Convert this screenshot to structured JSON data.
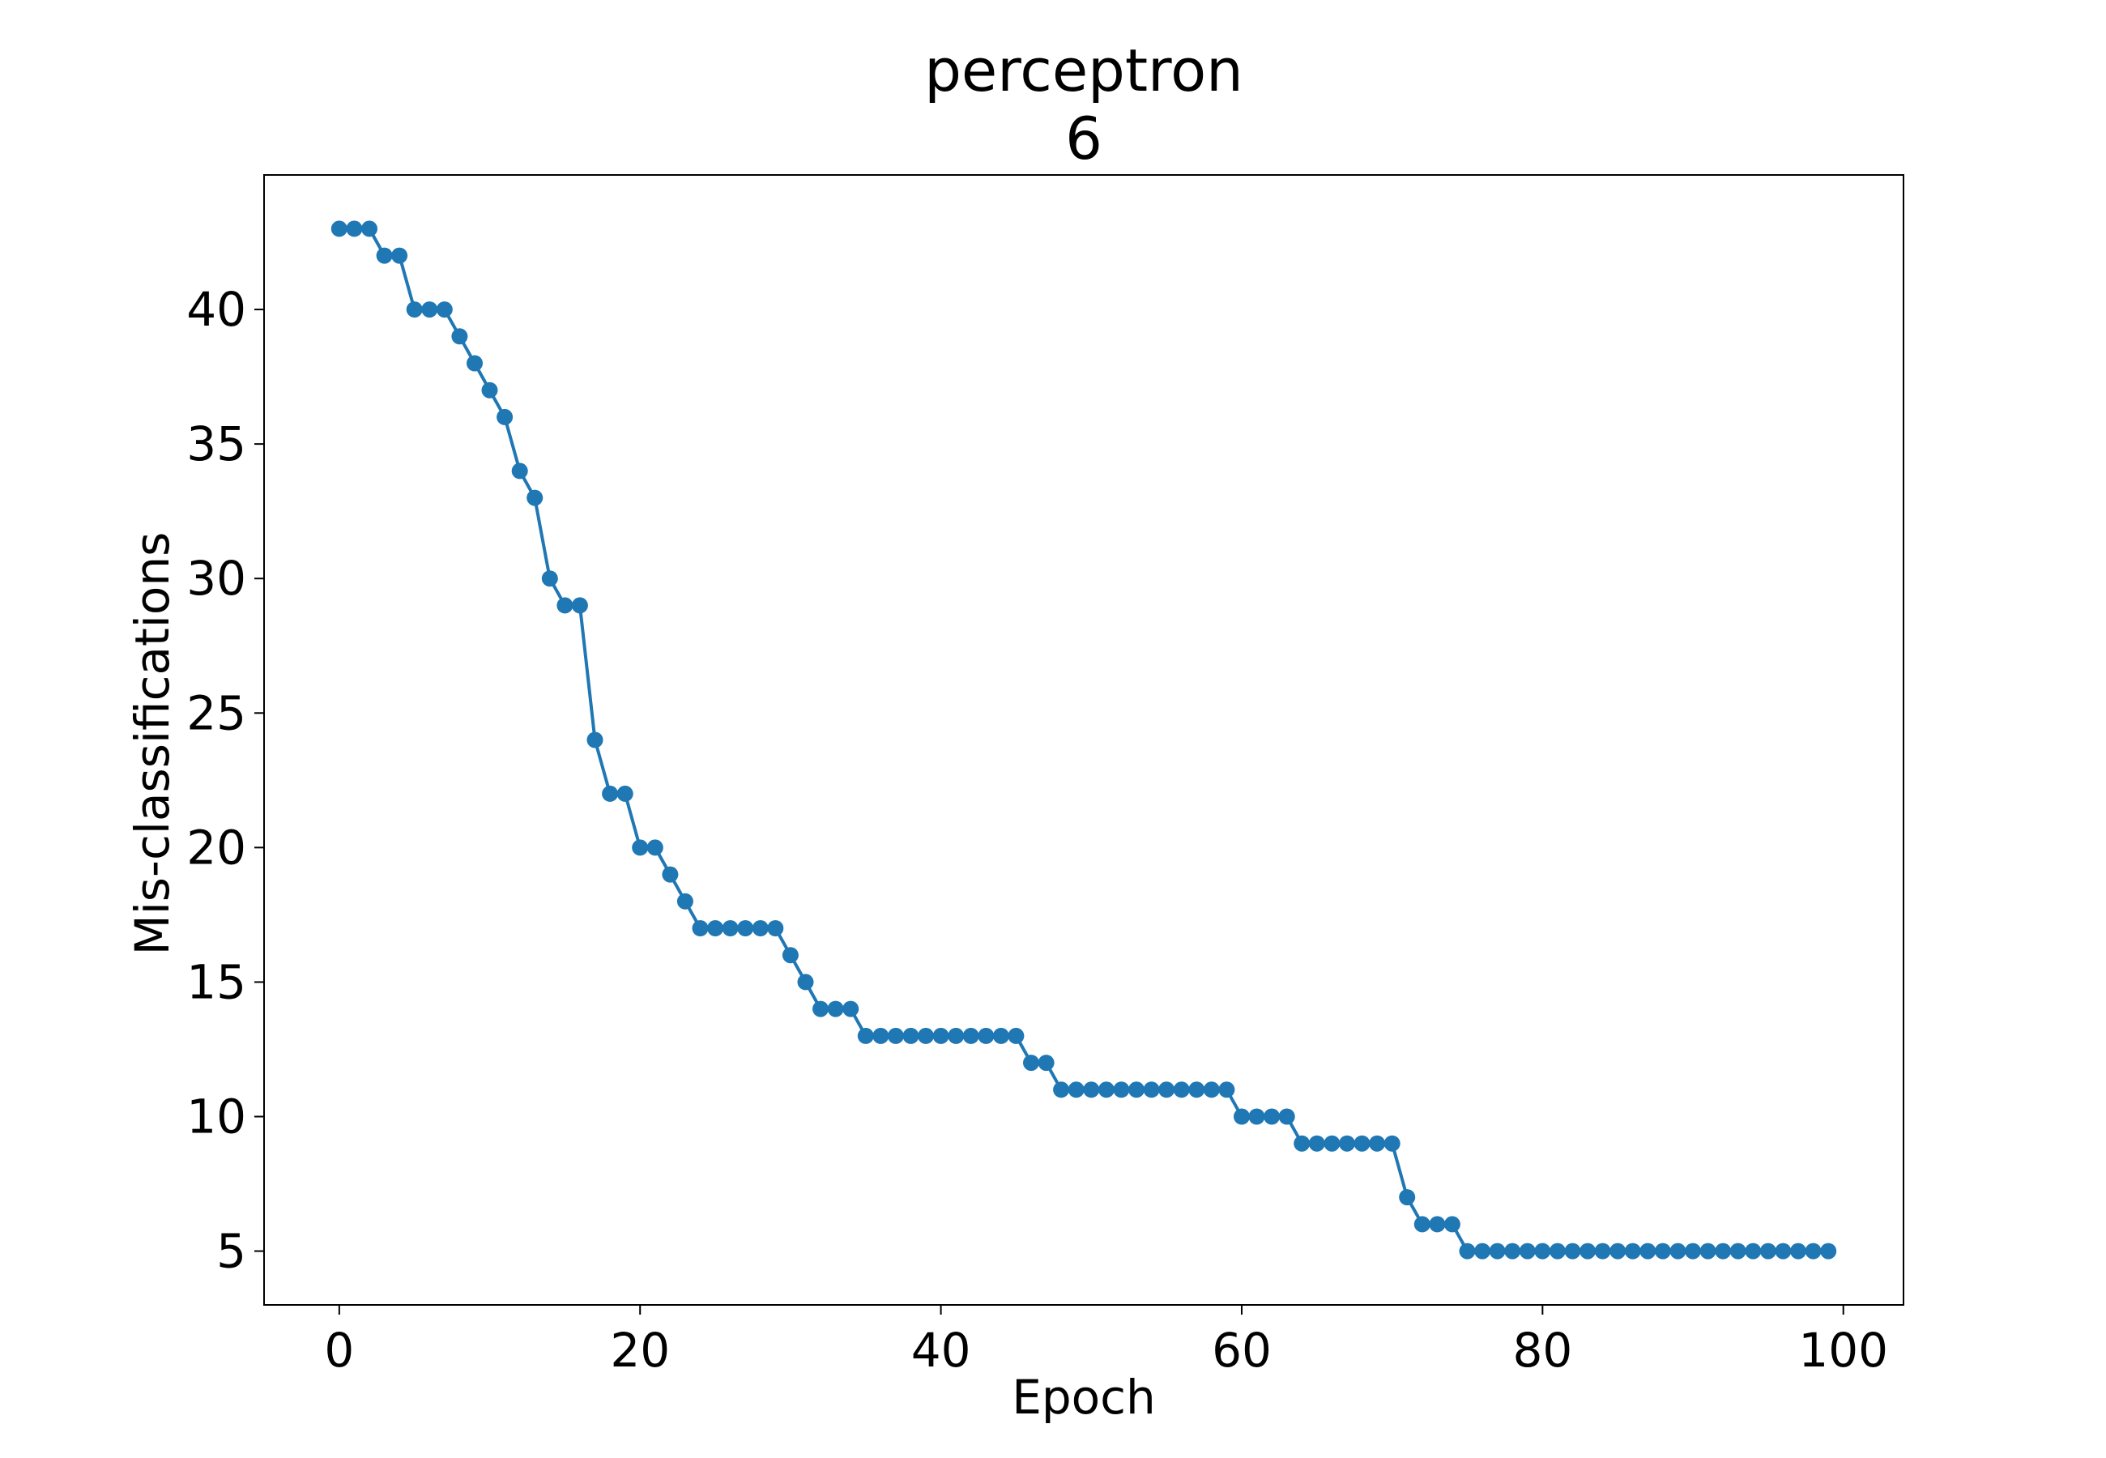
{
  "chart_data": {
    "type": "line",
    "title": "perceptron",
    "subtitle": "6",
    "xlabel": "Epoch",
    "ylabel": "Mis-classifications",
    "xlim": [
      -5,
      104
    ],
    "ylim": [
      3,
      45
    ],
    "xticks": [
      0,
      20,
      40,
      60,
      80,
      100
    ],
    "yticks": [
      5,
      10,
      15,
      20,
      25,
      30,
      35,
      40
    ],
    "grid": false,
    "color": "#1f77b4",
    "series": [
      {
        "name": "Mis-classifications",
        "x": [
          0,
          1,
          2,
          3,
          4,
          5,
          6,
          7,
          8,
          9,
          10,
          11,
          12,
          13,
          14,
          15,
          16,
          17,
          18,
          19,
          20,
          21,
          22,
          23,
          24,
          25,
          26,
          27,
          28,
          29,
          30,
          31,
          32,
          33,
          34,
          35,
          36,
          37,
          38,
          39,
          40,
          41,
          42,
          43,
          44,
          45,
          46,
          47,
          48,
          49,
          50,
          51,
          52,
          53,
          54,
          55,
          56,
          57,
          58,
          59,
          60,
          61,
          62,
          63,
          64,
          65,
          66,
          67,
          68,
          69,
          70,
          71,
          72,
          73,
          74,
          75,
          76,
          77,
          78,
          79,
          80,
          81,
          82,
          83,
          84,
          85,
          86,
          87,
          88,
          89,
          90,
          91,
          92,
          93,
          94,
          95,
          96,
          97,
          98,
          99
        ],
        "values": [
          43,
          43,
          43,
          42,
          42,
          40,
          40,
          40,
          39,
          38,
          37,
          36,
          34,
          33,
          30,
          29,
          29,
          24,
          22,
          22,
          20,
          20,
          19,
          18,
          17,
          17,
          17,
          17,
          17,
          17,
          16,
          15,
          14,
          14,
          14,
          13,
          13,
          13,
          13,
          13,
          13,
          13,
          13,
          13,
          13,
          13,
          12,
          12,
          11,
          11,
          11,
          11,
          11,
          11,
          11,
          11,
          11,
          11,
          11,
          11,
          10,
          10,
          10,
          10,
          9,
          9,
          9,
          9,
          9,
          9,
          9,
          7,
          6,
          6,
          6,
          5,
          5,
          5,
          5,
          5,
          5,
          5,
          5,
          5,
          5,
          5,
          5,
          5,
          5,
          5,
          5,
          5,
          5,
          5,
          5,
          5,
          5,
          5,
          5,
          5
        ]
      }
    ]
  }
}
